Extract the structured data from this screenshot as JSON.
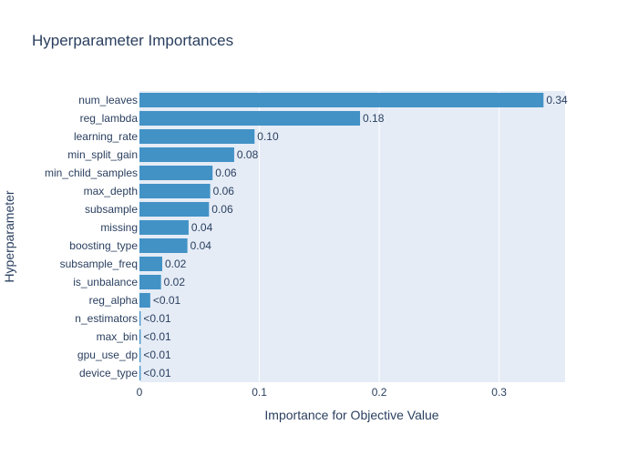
{
  "chart_data": {
    "type": "bar",
    "orientation": "horizontal",
    "title": "Hyperparameter Importances",
    "xlabel": "Importance for Objective Value",
    "ylabel": "Hyperparameter",
    "xlim": [
      0,
      0.355
    ],
    "x_ticks": [
      "0",
      "0.1",
      "0.2",
      "0.3"
    ],
    "x_tick_values": [
      0,
      0.1,
      0.2,
      0.3
    ],
    "grid": true,
    "legend": "none",
    "colors": {
      "bar": "#4292c6",
      "plot_bg": "#E5ECF6",
      "grid": "#ffffff",
      "text": "#2a3f5f"
    },
    "categories": [
      "num_leaves",
      "reg_lambda",
      "learning_rate",
      "min_split_gain",
      "min_child_samples",
      "max_depth",
      "subsample",
      "missing",
      "boosting_type",
      "subsample_freq",
      "is_unbalance",
      "reg_alpha",
      "n_estimators",
      "max_bin",
      "gpu_use_dp",
      "device_type"
    ],
    "values": [
      0.337,
      0.184,
      0.096,
      0.079,
      0.061,
      0.059,
      0.058,
      0.041,
      0.04,
      0.019,
      0.018,
      0.009,
      0.001,
      0.001,
      0.001,
      0.001
    ],
    "value_labels": [
      "0.34",
      "0.18",
      "0.10",
      "0.08",
      "0.06",
      "0.06",
      "0.06",
      "0.04",
      "0.04",
      "0.02",
      "0.02",
      "<0.01",
      "<0.01",
      "<0.01",
      "<0.01",
      "<0.01"
    ]
  }
}
